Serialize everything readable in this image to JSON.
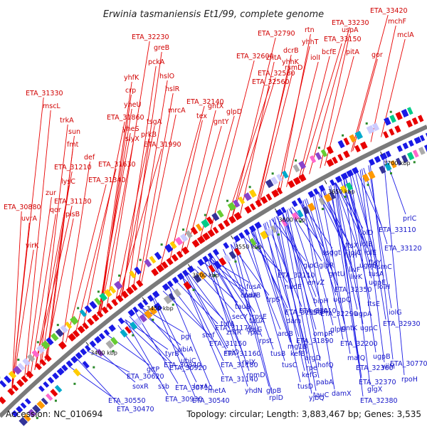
{
  "title": "Erwinia tasmaniensis Et1/99, complete genome",
  "footer": {
    "accession": "Accession: NC_010694",
    "summary": "Topology: circular; Length: 3,883,467 bp; Genes: 3,535"
  },
  "scale_ticks": [
    "3400 kbp",
    "3450 kbp",
    "3500 kbp",
    "3550 kbp",
    "3600 kbp",
    "3650 kbp",
    "3700 kbp"
  ],
  "colors": {
    "forward_strand": "#e80000",
    "reverse_strand": "#1a1ae6",
    "backbone": "#808080",
    "forward_label": "#d00000",
    "reverse_label": "#1515c8"
  },
  "forward_labels": [
    "ETA_33420",
    "mchF",
    "mclA",
    "ETA_33230",
    "uspA",
    "rtn",
    "ETA_32790",
    "ETA_33150",
    "gor",
    "yhhT",
    "dcrB",
    "bcfE",
    "pitA",
    "iolI",
    "ETA_32230",
    "greB",
    "yhhK",
    "zntA",
    "ETA_32600",
    "rsmD",
    "pckA",
    "ETA_32580",
    "hslO",
    "ETA_32560",
    "yhfK",
    "hslR",
    "crp",
    "ETA_32140",
    "gntX",
    "ETA_31330",
    "mrcA",
    "tex",
    "glpD",
    "yheU",
    "gntY",
    "mscL",
    "ETA_31860",
    "trkA",
    "sun",
    "fmt",
    "def",
    "ETA_31630",
    "ETA_31210",
    "lysC",
    "ETA_31340",
    "zur",
    "qor",
    "ETA_31130",
    "plsB",
    "ETA_30880",
    "uvrA",
    "virK",
    "ETA_31990",
    "tsgA",
    "yheS",
    "prkB",
    "slyX"
  ],
  "reverse_labels": [
    "prlC",
    "ETA_33110",
    "iolD",
    "iolB",
    "ETA_33120",
    "iolE",
    "iolC",
    "ftsX",
    "asd",
    "ggt",
    "livH",
    "ugpE",
    "ftsY",
    "glpG",
    "glpR",
    "livF",
    "rsmC",
    "tusA",
    "gntU",
    "ugpE",
    "ETA_32350",
    "livK",
    "iolH",
    "ETA_32110",
    "envZ",
    "ugpQ",
    "ftsE",
    "fusA",
    "codA",
    "nudE",
    "bioH",
    "glgA",
    "ETA_32290",
    "ugpA",
    "iolG",
    "tauB",
    "trpS",
    "ETA_32010",
    "gntK",
    "ETA_32930",
    "secY",
    "tauB",
    "tauA",
    "dam",
    "ompR",
    "rplL",
    "ETA_31850",
    "glpE",
    "ugpC",
    "tufA",
    "rpsE",
    "aroB",
    "rpsG",
    "ETA_31890",
    "ETA_32200",
    "rpsL",
    "tusB",
    "mg1B",
    "ETA_31170",
    "kefB",
    "argD",
    "hofQ",
    "malQ",
    "ugpB",
    "smf",
    "zntR",
    "ETA_31150",
    "rplO",
    "tusC",
    "rpe",
    "ETA_32360",
    "yiiM",
    "pgi",
    "ETA_31160",
    "rplX",
    "kefG",
    "pabA",
    "ETA_32370",
    "glgX",
    "ubiA",
    "ubiC",
    "ETA_31180",
    "rpmD",
    "tusD",
    "tauC",
    "damX",
    "ETA_32380",
    "rpoH",
    "tyrB",
    "ETA_30840",
    "ETA_30920",
    "ETA_31140",
    "rplD",
    "yjbQ",
    "lexA",
    "metA",
    "yhdN",
    "glpB",
    "ETA_30770",
    "gltP",
    "ETA_30620",
    "soxR",
    "ssb",
    "ETA_30710",
    "ETA_30930",
    "ETA_30540",
    "ETA_30550",
    "ETA_30470"
  ]
}
